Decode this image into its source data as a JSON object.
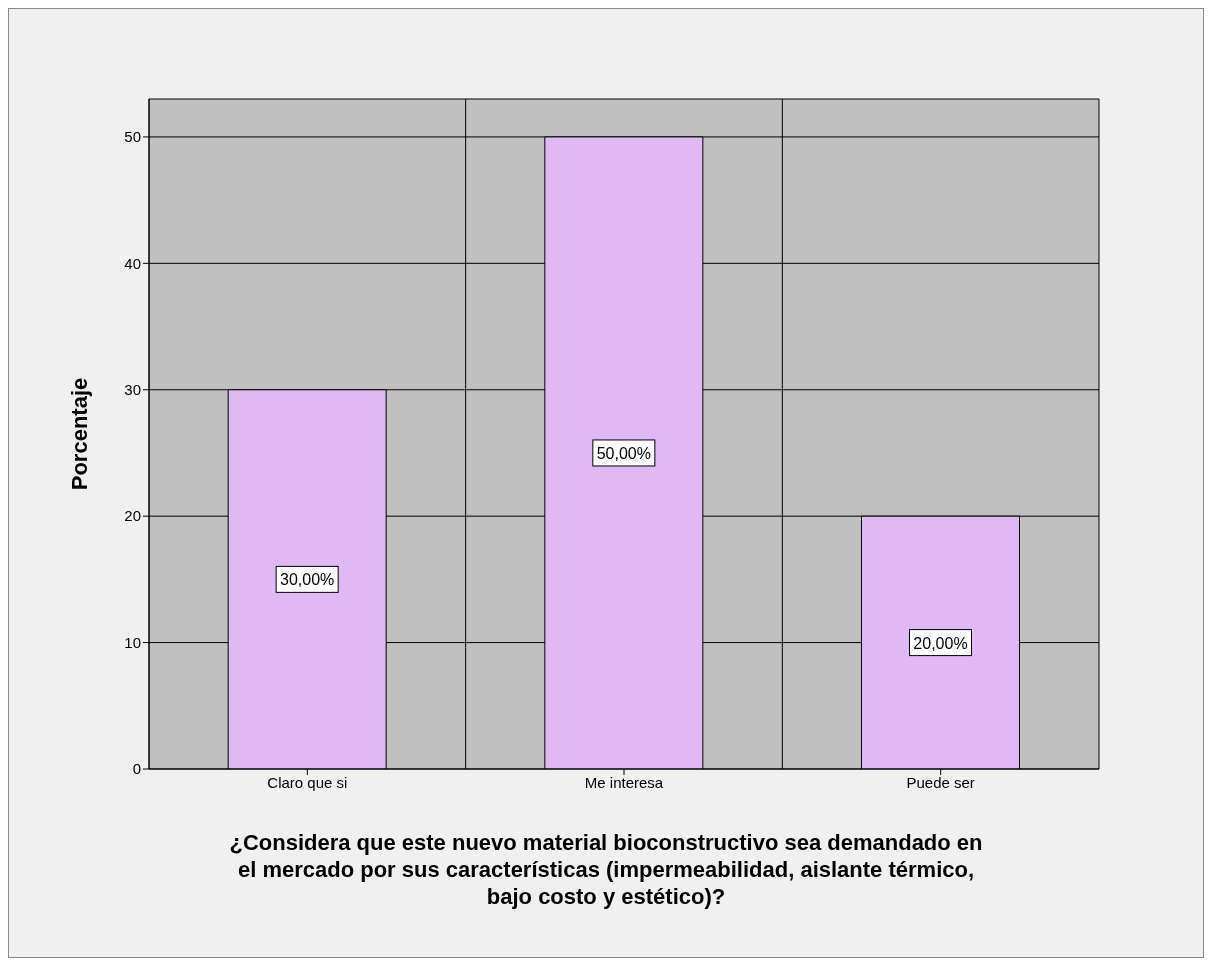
{
  "chart_data": {
    "type": "bar",
    "xlabel": "¿Considera que este nuevo material bioconstructivo sea demandado en el mercado por sus características (impermeabilidad, aislante térmico, bajo costo y estético)?",
    "ylabel": "Porcentaje",
    "categories": [
      "Claro que si",
      "Me interesa",
      "Puede ser"
    ],
    "values": [
      30,
      50,
      20
    ],
    "value_labels": [
      "30,00%",
      "50,00%",
      "20,00%"
    ],
    "color": "#e0b8f4",
    "ylim": [
      0,
      53
    ],
    "yticks": [
      0,
      10,
      20,
      30,
      40,
      50
    ],
    "grid": true
  }
}
